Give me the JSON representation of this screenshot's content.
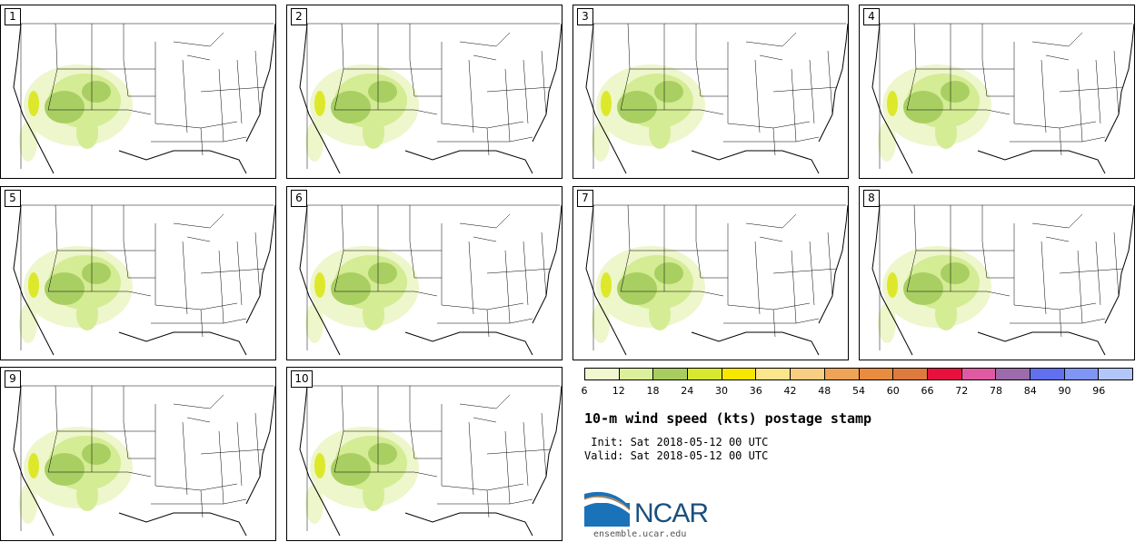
{
  "panels": [
    {
      "member": "1"
    },
    {
      "member": "2"
    },
    {
      "member": "3"
    },
    {
      "member": "4"
    },
    {
      "member": "5"
    },
    {
      "member": "6"
    },
    {
      "member": "7"
    },
    {
      "member": "8"
    },
    {
      "member": "9"
    },
    {
      "member": "10"
    }
  ],
  "colorbar": {
    "ticks": [
      "6",
      "12",
      "18",
      "24",
      "30",
      "36",
      "42",
      "48",
      "54",
      "60",
      "66",
      "72",
      "78",
      "84",
      "90",
      "96"
    ],
    "colors": [
      "#f1f8d0",
      "#dcef9a",
      "#a9cc5e",
      "#d8e830",
      "#f8e800",
      "#fbe68c",
      "#f8cf82",
      "#efa357",
      "#e98c3d",
      "#df7a3e",
      "#e8103c",
      "#df5aa0",
      "#9c6bab",
      "#6070ef",
      "#8096f4",
      "#b3c6fb"
    ]
  },
  "map_colors": {
    "light": "#eef6cc",
    "medium": "#d4ec94",
    "dark": "#a9cf62",
    "yellow": "#dde82a"
  },
  "title": "10-m wind speed (kts) postage stamp",
  "init_line": " Init: Sat 2018-05-12 00 UTC",
  "valid_line": "Valid: Sat 2018-05-12 00 UTC",
  "logo": {
    "name": "NCAR",
    "url": "ensemble.ucar.edu"
  }
}
